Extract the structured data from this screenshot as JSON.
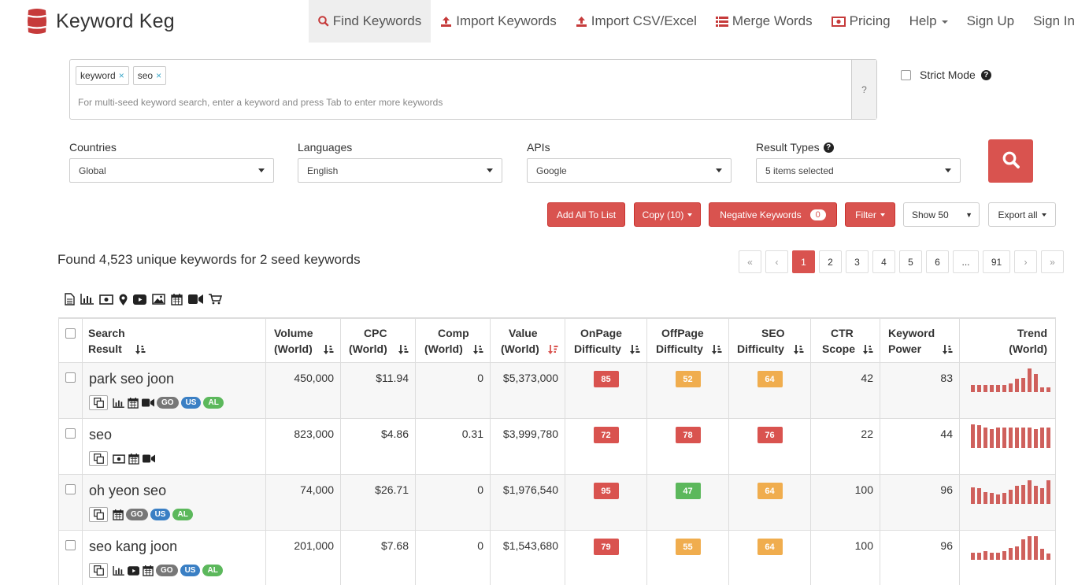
{
  "nav": {
    "brand": "Keyword Keg",
    "items": [
      {
        "label": "Find Keywords",
        "icon": "search-icon",
        "active": true
      },
      {
        "label": "Import Keywords",
        "icon": "upload-icon"
      },
      {
        "label": "Import CSV/Excel",
        "icon": "upload-icon"
      },
      {
        "label": "Merge Words",
        "icon": "list-icon"
      },
      {
        "label": "Pricing",
        "icon": "money-icon"
      },
      {
        "label": "Help"
      },
      {
        "label": "Sign Up"
      },
      {
        "label": "Sign In"
      }
    ]
  },
  "seed": {
    "tags": [
      "keyword",
      "seo"
    ],
    "hint": "For multi-seed keyword search, enter a keyword and press Tab to enter more keywords",
    "help": "?"
  },
  "strict_mode": {
    "label": "Strict Mode",
    "checked": false
  },
  "filters": [
    {
      "label": "Countries",
      "value": "Global",
      "help": false
    },
    {
      "label": "Languages",
      "value": "English",
      "help": false
    },
    {
      "label": "APIs",
      "value": "Google",
      "help": false
    },
    {
      "label": "Result Types",
      "value": "5 items selected",
      "help": true
    }
  ],
  "actions": {
    "add_all": "Add All To List",
    "copy": "Copy (10)",
    "negative": "Negative Keywords",
    "negative_count": "0",
    "filter": "Filter",
    "show": "Show 50",
    "export": "Export all"
  },
  "found_text": "Found 4,523 unique keywords for 2 seed keywords",
  "pagination": [
    "«",
    "‹",
    "1",
    "2",
    "3",
    "4",
    "5",
    "6",
    "...",
    "91",
    "›",
    "»"
  ],
  "pagination_active": "1",
  "toolbar_icons": [
    "document-icon",
    "bar-chart-icon",
    "money-icon",
    "map-marker-icon",
    "youtube-icon",
    "image-icon",
    "calendar-icon",
    "video-icon",
    "cart-icon"
  ],
  "columns": [
    {
      "l1": "Search",
      "l2": "Result"
    },
    {
      "l1": "Volume",
      "l2": "(World)"
    },
    {
      "l1": "CPC",
      "l2": "(World)"
    },
    {
      "l1": "Comp",
      "l2": "(World)"
    },
    {
      "l1": "Value",
      "l2": "(World)"
    },
    {
      "l1": "OnPage",
      "l2": "Difficulty"
    },
    {
      "l1": "OffPage",
      "l2": "Difficulty"
    },
    {
      "l1": "SEO",
      "l2": "Difficulty"
    },
    {
      "l1": "CTR",
      "l2": "Scope"
    },
    {
      "l1": "Keyword",
      "l2": "Power"
    },
    {
      "l1": "Trend",
      "l2": "(World)"
    }
  ],
  "colors": {
    "red": "#d9534f",
    "orange": "#f0ad4e",
    "green": "#5cb85c",
    "trend": "#cf605c"
  },
  "rows": [
    {
      "keyword": "park seo joon",
      "icons": [
        "bar-chart-icon",
        "calendar-icon",
        "video-icon"
      ],
      "pills": [
        "GO",
        "US",
        "AL"
      ],
      "volume": "450,000",
      "cpc": "$11.94",
      "comp": "0",
      "value": "$5,373,000",
      "onpage": {
        "v": "85",
        "c": "red"
      },
      "offpage": {
        "v": "52",
        "c": "orange"
      },
      "seo": {
        "v": "64",
        "c": "orange"
      },
      "ctr": "42",
      "power": "83",
      "trend": [
        0.3,
        0.3,
        0.3,
        0.3,
        0.3,
        0.3,
        0.35,
        0.55,
        0.6,
        1.0,
        0.75,
        0.2,
        0.2
      ]
    },
    {
      "keyword": "seo",
      "icons": [
        "money-icon",
        "calendar-icon",
        "video-icon"
      ],
      "pills": [],
      "volume": "823,000",
      "cpc": "$4.86",
      "comp": "0.31",
      "value": "$3,999,780",
      "onpage": {
        "v": "72",
        "c": "red"
      },
      "offpage": {
        "v": "78",
        "c": "red"
      },
      "seo": {
        "v": "76",
        "c": "red"
      },
      "ctr": "22",
      "power": "44",
      "trend": [
        1.0,
        0.95,
        0.85,
        0.8,
        0.85,
        0.85,
        0.85,
        0.85,
        0.85,
        0.85,
        0.8,
        0.85,
        0.85
      ]
    },
    {
      "keyword": "oh yeon seo",
      "icons": [
        "calendar-icon"
      ],
      "pills": [
        "GO",
        "US",
        "AL"
      ],
      "volume": "74,000",
      "cpc": "$26.71",
      "comp": "0",
      "value": "$1,976,540",
      "onpage": {
        "v": "95",
        "c": "red"
      },
      "offpage": {
        "v": "47",
        "c": "green"
      },
      "seo": {
        "v": "64",
        "c": "orange"
      },
      "ctr": "100",
      "power": "96",
      "trend": [
        0.7,
        0.65,
        0.5,
        0.45,
        0.4,
        0.45,
        0.6,
        0.75,
        0.8,
        1.0,
        0.75,
        0.65,
        1.0
      ]
    },
    {
      "keyword": "seo kang joon",
      "icons": [
        "bar-chart-icon",
        "youtube-icon",
        "calendar-icon"
      ],
      "pills": [
        "GO",
        "US",
        "AL"
      ],
      "volume": "201,000",
      "cpc": "$7.68",
      "comp": "0",
      "value": "$1,543,680",
      "onpage": {
        "v": "79",
        "c": "red"
      },
      "offpage": {
        "v": "55",
        "c": "orange"
      },
      "seo": {
        "v": "64",
        "c": "orange"
      },
      "ctr": "100",
      "power": "96",
      "trend": [
        0.3,
        0.3,
        0.35,
        0.3,
        0.3,
        0.35,
        0.5,
        0.55,
        0.85,
        1.0,
        1.0,
        0.45,
        0.25
      ]
    }
  ]
}
